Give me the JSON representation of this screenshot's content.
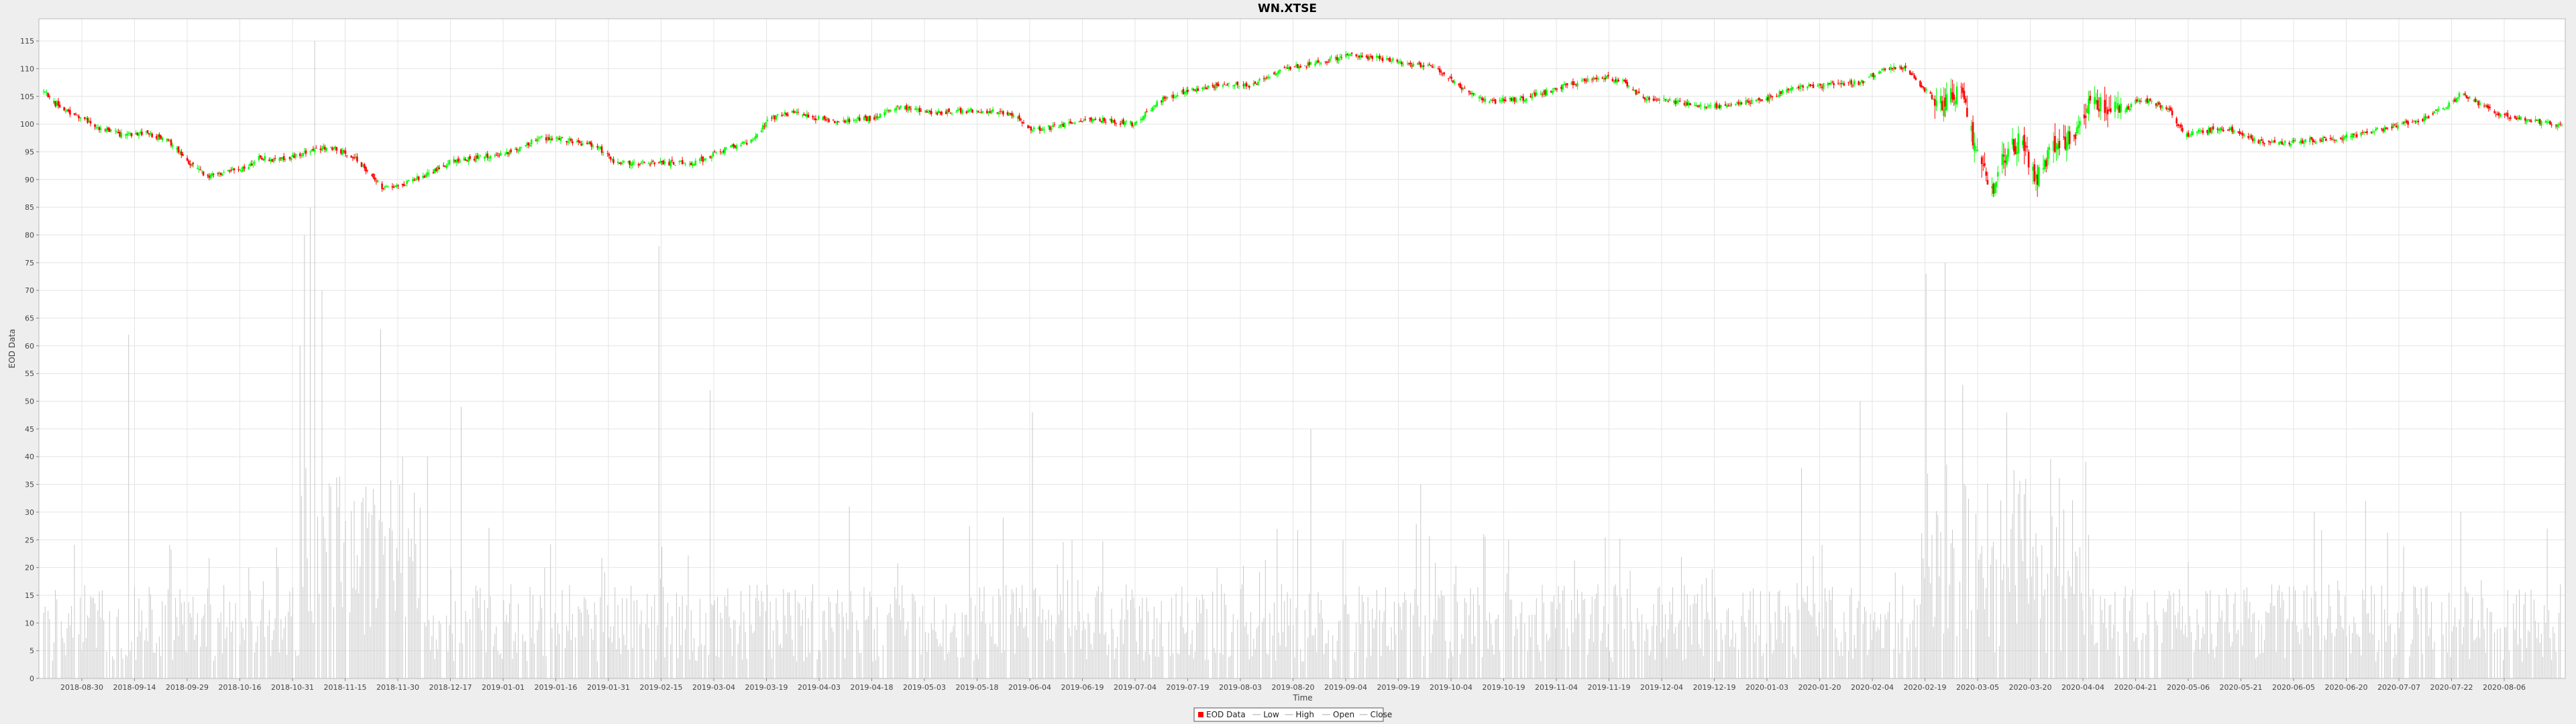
{
  "chart_data": {
    "type": "candlestick",
    "title": "WN.XTSE",
    "xlabel": "Time",
    "ylabel": "EOD Data",
    "ylim": [
      0,
      119
    ],
    "y_ticks": [
      0,
      5,
      10,
      15,
      20,
      25,
      30,
      35,
      40,
      45,
      50,
      55,
      60,
      65,
      70,
      75,
      80,
      85,
      90,
      95,
      100,
      105,
      110,
      115
    ],
    "x_ticks": [
      "2018-08-30",
      "2018-09-14",
      "2018-09-29",
      "2018-10-16",
      "2018-10-31",
      "2018-11-15",
      "2018-11-30",
      "2018-12-17",
      "2019-01-01",
      "2019-01-16",
      "2019-01-31",
      "2019-02-15",
      "2019-03-04",
      "2019-03-19",
      "2019-04-03",
      "2019-04-18",
      "2019-05-03",
      "2019-05-18",
      "2019-06-04",
      "2019-06-19",
      "2019-07-04",
      "2019-07-19",
      "2019-08-03",
      "2019-08-20",
      "2019-09-04",
      "2019-09-19",
      "2019-10-04",
      "2019-10-19",
      "2019-11-04",
      "2019-11-19",
      "2019-12-04",
      "2019-12-19",
      "2020-01-03",
      "2020-01-20",
      "2020-02-04",
      "2020-02-19",
      "2020-03-05",
      "2020-03-20",
      "2020-04-04",
      "2020-04-21",
      "2020-05-06",
      "2020-05-21",
      "2020-06-05",
      "2020-06-20",
      "2020-07-07",
      "2020-07-22",
      "2020-08-06"
    ],
    "close_path": [
      [
        0,
        106
      ],
      [
        6,
        104
      ],
      [
        15,
        102.5
      ],
      [
        28,
        101
      ],
      [
        40,
        99
      ],
      [
        55,
        98
      ],
      [
        70,
        98.5
      ],
      [
        85,
        97
      ],
      [
        100,
        93
      ],
      [
        112,
        90.5
      ],
      [
        125,
        91.5
      ],
      [
        138,
        92
      ],
      [
        148,
        94
      ],
      [
        160,
        93.5
      ],
      [
        175,
        94.5
      ],
      [
        195,
        96
      ],
      [
        212,
        94
      ],
      [
        232,
        88.5
      ],
      [
        245,
        89
      ],
      [
        262,
        91
      ],
      [
        280,
        93.5
      ],
      [
        300,
        94
      ],
      [
        320,
        95
      ],
      [
        338,
        97.5
      ],
      [
        360,
        97
      ],
      [
        378,
        96
      ],
      [
        390,
        93
      ],
      [
        420,
        93
      ],
      [
        445,
        93
      ],
      [
        465,
        95.5
      ],
      [
        485,
        97
      ],
      [
        495,
        101
      ],
      [
        510,
        102
      ],
      [
        540,
        100.5
      ],
      [
        565,
        101
      ],
      [
        585,
        103
      ],
      [
        610,
        102
      ],
      [
        635,
        102.5
      ],
      [
        660,
        102
      ],
      [
        675,
        99
      ],
      [
        690,
        99.5
      ],
      [
        715,
        101
      ],
      [
        745,
        100
      ],
      [
        760,
        104
      ],
      [
        780,
        106
      ],
      [
        800,
        107
      ],
      [
        825,
        107
      ],
      [
        845,
        110
      ],
      [
        870,
        111
      ],
      [
        890,
        112.5
      ],
      [
        910,
        112
      ],
      [
        930,
        111
      ],
      [
        950,
        110
      ],
      [
        965,
        107
      ],
      [
        985,
        104
      ],
      [
        1010,
        104.5
      ],
      [
        1040,
        107
      ],
      [
        1060,
        108.5
      ],
      [
        1078,
        108
      ],
      [
        1090,
        105
      ],
      [
        1115,
        104
      ],
      [
        1135,
        103
      ],
      [
        1155,
        103.5
      ],
      [
        1175,
        104.5
      ],
      [
        1195,
        106.5
      ],
      [
        1215,
        107
      ],
      [
        1240,
        107.5
      ],
      [
        1258,
        110
      ],
      [
        1272,
        110
      ],
      [
        1285,
        106
      ],
      [
        1295,
        103.5
      ],
      [
        1308,
        106.5
      ],
      [
        1322,
        93
      ],
      [
        1330,
        88
      ],
      [
        1340,
        95
      ],
      [
        1350,
        97
      ],
      [
        1360,
        90
      ],
      [
        1372,
        96
      ],
      [
        1385,
        98
      ],
      [
        1395,
        103
      ],
      [
        1405,
        104
      ],
      [
        1418,
        102
      ],
      [
        1430,
        104.5
      ],
      [
        1450,
        103
      ],
      [
        1462,
        98
      ],
      [
        1480,
        99
      ],
      [
        1495,
        99
      ],
      [
        1510,
        97
      ],
      [
        1525,
        96.5
      ],
      [
        1545,
        97
      ],
      [
        1565,
        97.5
      ],
      [
        1580,
        98
      ],
      [
        1595,
        99
      ],
      [
        1610,
        100
      ],
      [
        1625,
        101
      ],
      [
        1640,
        103
      ],
      [
        1650,
        105.5
      ],
      [
        1660,
        104
      ],
      [
        1675,
        102
      ],
      [
        1690,
        101
      ],
      [
        1702,
        100.5
      ],
      [
        1712,
        100
      ]
    ],
    "volume_spikes": [
      [
        58,
        62
      ],
      [
        140,
        20
      ],
      [
        175,
        60
      ],
      [
        178,
        80
      ],
      [
        182,
        85
      ],
      [
        185,
        115
      ],
      [
        190,
        70
      ],
      [
        230,
        63
      ],
      [
        245,
        40
      ],
      [
        262,
        40
      ],
      [
        285,
        49
      ],
      [
        420,
        78
      ],
      [
        455,
        52
      ],
      [
        550,
        31
      ],
      [
        645,
        33
      ],
      [
        675,
        48
      ],
      [
        865,
        45
      ],
      [
        940,
        35
      ],
      [
        1000,
        25
      ],
      [
        1200,
        38
      ],
      [
        1240,
        50
      ],
      [
        1262,
        45
      ],
      [
        1285,
        73
      ],
      [
        1298,
        75
      ],
      [
        1310,
        53
      ],
      [
        1340,
        48
      ],
      [
        1440,
        71
      ],
      [
        1550,
        30
      ],
      [
        1585,
        32
      ],
      [
        1650,
        30
      ]
    ],
    "legend": [
      "EOD Data",
      "Low",
      "High",
      "Open",
      "Close"
    ],
    "legend_placement": "bottom-center",
    "grid": true,
    "colors": {
      "up": "#00ff00",
      "down": "#ff0000",
      "volume": "#c8c8c8",
      "grid": "#e4e4e4",
      "frame": "#bbbbbb",
      "plot_background": "#ffffff",
      "page_background": "#eeeeee"
    }
  }
}
